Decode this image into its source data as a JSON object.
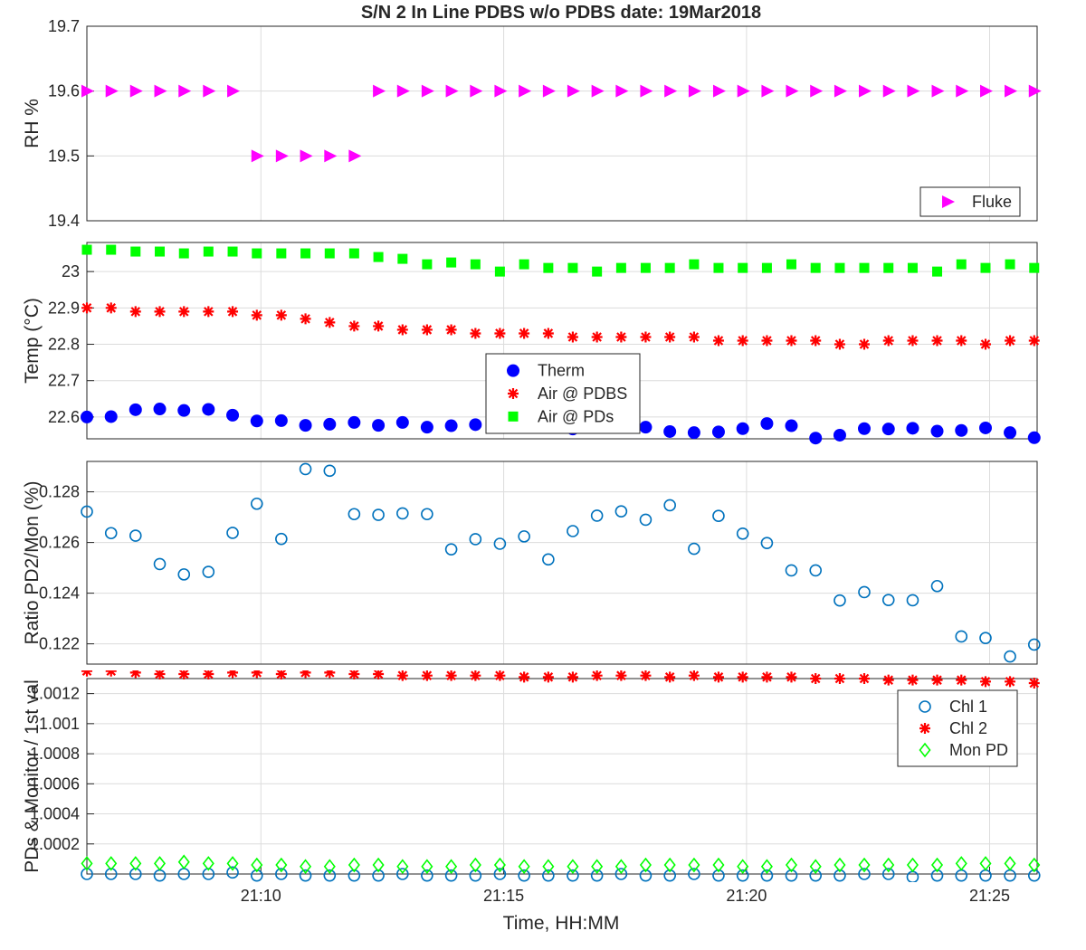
{
  "figure": {
    "title": "S/N 2 In Line PDBS w/o PDBS date: 19Mar2018",
    "xlabel": "Time, HH:MM"
  },
  "chart_data": [
    {
      "type": "scatter",
      "ylabel": "RH %",
      "xlim": [
        21.107,
        21.433
      ],
      "ylim": [
        19.4,
        19.7
      ],
      "xticks": [],
      "yticks": [
        19.4,
        19.5,
        19.6,
        19.7
      ],
      "ytick_labels": [
        "19.4",
        "19.5",
        "19.6",
        "19.7"
      ],
      "grid": true,
      "legend": "bottom-right",
      "x_labels_note": "times in hours since midnight",
      "x": [
        21.107,
        21.1153,
        21.1237,
        21.132,
        21.1403,
        21.1487,
        21.157,
        21.1653,
        21.1737,
        21.182,
        21.1903,
        21.1987,
        21.207,
        21.2153,
        21.2237,
        21.232,
        21.2403,
        21.2487,
        21.257,
        21.2653,
        21.2737,
        21.282,
        21.2903,
        21.2987,
        21.307,
        21.3153,
        21.3237,
        21.332,
        21.3403,
        21.3487,
        21.357,
        21.3653,
        21.3737,
        21.382,
        21.3903,
        21.3987,
        21.407,
        21.4153,
        21.4237,
        21.432
      ],
      "series": [
        {
          "name": "Fluke",
          "marker": "triangle-right",
          "color": "#ff00ff",
          "filled": true,
          "values": [
            19.6,
            19.6,
            19.6,
            19.6,
            19.6,
            19.6,
            19.6,
            19.5,
            19.5,
            19.5,
            19.5,
            19.5,
            19.6,
            19.6,
            19.6,
            19.6,
            19.6,
            19.6,
            19.6,
            19.6,
            19.6,
            19.6,
            19.6,
            19.6,
            19.6,
            19.6,
            19.6,
            19.6,
            19.6,
            19.6,
            19.6,
            19.6,
            19.6,
            19.6,
            19.6,
            19.6,
            19.6,
            19.6,
            19.6,
            19.6
          ]
        }
      ]
    },
    {
      "type": "scatter",
      "ylabel": "Temp (°C)",
      "xlim": [
        21.107,
        21.433
      ],
      "ylim": [
        22.54,
        23.08
      ],
      "yticks": [
        22.6,
        22.7,
        22.8,
        22.9,
        23
      ],
      "ytick_labels": [
        "22.6",
        "22.7",
        "22.8",
        "22.9",
        "23"
      ],
      "grid": true,
      "legend": "center",
      "x": [
        21.107,
        21.1153,
        21.1237,
        21.132,
        21.1403,
        21.1487,
        21.157,
        21.1653,
        21.1737,
        21.182,
        21.1903,
        21.1987,
        21.207,
        21.2153,
        21.2237,
        21.232,
        21.2403,
        21.2487,
        21.257,
        21.2653,
        21.2737,
        21.282,
        21.2903,
        21.2987,
        21.307,
        21.3153,
        21.3237,
        21.332,
        21.3403,
        21.3487,
        21.357,
        21.3653,
        21.3737,
        21.382,
        21.3903,
        21.3987,
        21.407,
        21.4153,
        21.4237,
        21.432
      ],
      "series": [
        {
          "name": "Therm",
          "marker": "circle",
          "color": "#0000ff",
          "filled": true,
          "values": [
            22.6,
            22.601,
            22.62,
            22.622,
            22.618,
            22.621,
            22.605,
            22.589,
            22.59,
            22.577,
            22.58,
            22.585,
            22.577,
            22.585,
            22.572,
            22.576,
            22.579,
            22.572,
            22.574,
            22.576,
            22.567,
            22.573,
            22.573,
            22.572,
            22.56,
            22.557,
            22.559,
            22.568,
            22.582,
            22.576,
            22.542,
            22.55,
            22.568,
            22.567,
            22.569,
            22.561,
            22.563,
            22.57,
            22.557,
            22.543
          ]
        },
        {
          "name": "Air @ PDBS",
          "marker": "asterisk",
          "color": "#ff0000",
          "filled": true,
          "values": [
            22.9,
            22.9,
            22.89,
            22.89,
            22.89,
            22.89,
            22.89,
            22.88,
            22.88,
            22.87,
            22.86,
            22.85,
            22.85,
            22.84,
            22.84,
            22.84,
            22.83,
            22.83,
            22.83,
            22.83,
            22.82,
            22.82,
            22.82,
            22.82,
            22.82,
            22.82,
            22.81,
            22.81,
            22.81,
            22.81,
            22.81,
            22.8,
            22.8,
            22.81,
            22.81,
            22.81,
            22.81,
            22.8,
            22.81,
            22.81
          ]
        },
        {
          "name": "Air @ PDs",
          "marker": "square",
          "color": "#00ff00",
          "filled": true,
          "values": [
            23.06,
            23.06,
            23.055,
            23.055,
            23.05,
            23.055,
            23.055,
            23.05,
            23.05,
            23.05,
            23.05,
            23.05,
            23.04,
            23.035,
            23.02,
            23.025,
            23.02,
            23.0,
            23.02,
            23.01,
            23.01,
            23.0,
            23.01,
            23.01,
            23.01,
            23.02,
            23.01,
            23.01,
            23.01,
            23.02,
            23.01,
            23.01,
            23.01,
            23.01,
            23.01,
            23.0,
            23.02,
            23.01,
            23.02,
            23.01
          ]
        }
      ]
    },
    {
      "type": "scatter",
      "ylabel": "Ratio PD2/Mon (%)",
      "xlim": [
        21.107,
        21.433
      ],
      "ylim": [
        0.1212,
        0.1292
      ],
      "yticks": [
        0.122,
        0.124,
        0.126,
        0.128
      ],
      "ytick_labels": [
        "0.122",
        "0.124",
        "0.126",
        "0.128"
      ],
      "grid": true,
      "legend": "none",
      "x": [
        21.107,
        21.1153,
        21.1237,
        21.132,
        21.1403,
        21.1487,
        21.157,
        21.1653,
        21.1737,
        21.182,
        21.1903,
        21.1987,
        21.207,
        21.2153,
        21.2237,
        21.232,
        21.2403,
        21.2487,
        21.257,
        21.2653,
        21.2737,
        21.282,
        21.2903,
        21.2987,
        21.307,
        21.3153,
        21.3237,
        21.332,
        21.3403,
        21.3487,
        21.357,
        21.3653,
        21.3737,
        21.382,
        21.3903,
        21.3987,
        21.407,
        21.4153,
        21.4237,
        21.432
      ],
      "series": [
        {
          "name": "",
          "marker": "circle",
          "color": "#0072bd",
          "filled": false,
          "values": [
            0.12722,
            0.12637,
            0.12627,
            0.12515,
            0.12474,
            0.12484,
            0.12638,
            0.12753,
            0.12614,
            0.1289,
            0.12883,
            0.12712,
            0.12709,
            0.12715,
            0.12712,
            0.12573,
            0.12613,
            0.12595,
            0.12624,
            0.12533,
            0.12645,
            0.12706,
            0.12723,
            0.1269,
            0.12747,
            0.12575,
            0.12705,
            0.12635,
            0.12598,
            0.1249,
            0.1249,
            0.12371,
            0.12404,
            0.12373,
            0.12372,
            0.12428,
            0.12229,
            0.12223,
            0.1215,
            0.12197
          ]
        }
      ]
    },
    {
      "type": "scatter",
      "ylabel": "PDs & Monitor / 1st val",
      "xlim": [
        21.107,
        21.433
      ],
      "ylim": [
        1.0,
        1.0013
      ],
      "xticks": [
        21.1667,
        21.25,
        21.3333,
        21.4167
      ],
      "xtick_labels": [
        "21:10",
        "21:15",
        "21:20",
        "21:25"
      ],
      "yticks": [
        1.0002,
        1.0004,
        1.0006,
        1.0008,
        1.001,
        1.0012
      ],
      "ytick_labels": [
        "1.0002",
        "1.0004",
        "1.0006",
        "1.0008",
        "1.001",
        "1.0012"
      ],
      "grid": true,
      "legend": "top-right",
      "x": [
        21.107,
        21.1153,
        21.1237,
        21.132,
        21.1403,
        21.1487,
        21.157,
        21.1653,
        21.1737,
        21.182,
        21.1903,
        21.1987,
        21.207,
        21.2153,
        21.2237,
        21.232,
        21.2403,
        21.2487,
        21.257,
        21.2653,
        21.2737,
        21.282,
        21.2903,
        21.2987,
        21.307,
        21.3153,
        21.3237,
        21.332,
        21.3403,
        21.3487,
        21.357,
        21.3653,
        21.3737,
        21.382,
        21.3903,
        21.3987,
        21.407,
        21.4153,
        21.4237,
        21.432
      ],
      "series": [
        {
          "name": "Chl 1",
          "marker": "circle",
          "color": "#0072bd",
          "filled": false,
          "values": [
            1.0,
            1.0,
            1.0,
            0.99999,
            1.0,
            1.0,
            1.00001,
            0.99999,
            1.0,
            0.99999,
            0.99999,
            0.99999,
            0.99999,
            1.0,
            0.99999,
            0.99999,
            0.99999,
            1.0,
            0.99999,
            0.99999,
            0.99999,
            0.99999,
            1.0,
            0.99999,
            0.99999,
            1.0,
            0.99999,
            0.99999,
            0.99999,
            0.99999,
            0.99999,
            0.99999,
            1.0,
            1.0,
            0.99998,
            0.99999,
            0.99999,
            0.99999,
            0.99999,
            0.99999
          ]
        },
        {
          "name": "Chl 2",
          "marker": "asterisk",
          "color": "#ff0000",
          "filled": true,
          "values": [
            1.00135,
            1.00135,
            1.00134,
            1.00133,
            1.00133,
            1.00133,
            1.00134,
            1.00134,
            1.00133,
            1.00134,
            1.00134,
            1.00133,
            1.00133,
            1.00132,
            1.00132,
            1.00132,
            1.00132,
            1.00132,
            1.00131,
            1.00131,
            1.00131,
            1.00132,
            1.00132,
            1.00132,
            1.00131,
            1.00132,
            1.00131,
            1.00131,
            1.00131,
            1.00131,
            1.0013,
            1.0013,
            1.0013,
            1.00129,
            1.00129,
            1.00129,
            1.00129,
            1.00128,
            1.00128,
            1.00127
          ]
        },
        {
          "name": "Mon PD",
          "marker": "diamond",
          "color": "#00ff00",
          "filled": false,
          "values": [
            1.00007,
            1.00007,
            1.00007,
            1.00007,
            1.00008,
            1.00007,
            1.00007,
            1.00006,
            1.00006,
            1.00005,
            1.00005,
            1.00006,
            1.00006,
            1.00005,
            1.00005,
            1.00005,
            1.00006,
            1.00006,
            1.00005,
            1.00005,
            1.00005,
            1.00005,
            1.00005,
            1.00006,
            1.00006,
            1.00006,
            1.00006,
            1.00005,
            1.00005,
            1.00006,
            1.00005,
            1.00006,
            1.00006,
            1.00006,
            1.00006,
            1.00006,
            1.00007,
            1.00007,
            1.00007,
            1.00006
          ]
        }
      ]
    }
  ]
}
